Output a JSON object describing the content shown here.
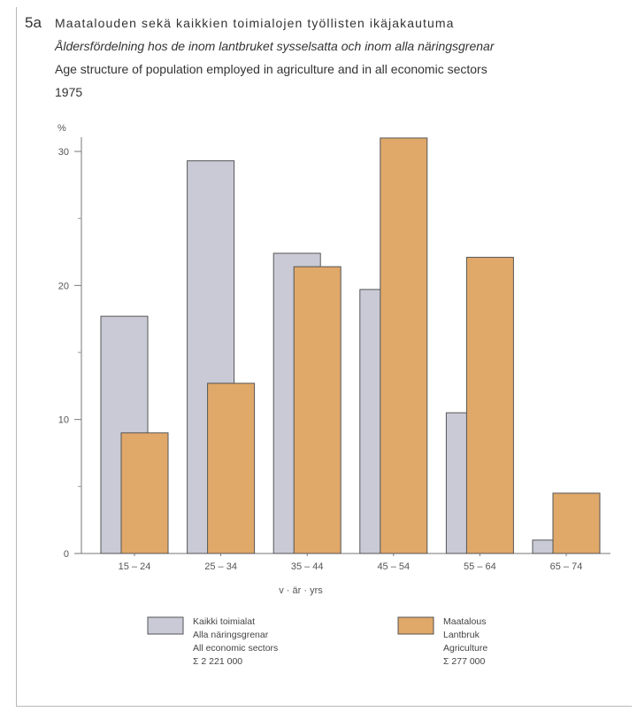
{
  "figure_number": "5a",
  "title_lines": [
    "Maatalouden sekä kaikkien toimialojen työllisten ikäjakautuma",
    "Åldersfördelning hos de inom lantbruket sysselsatta och inom alla näringsgrenar",
    "Age structure of population employed in agriculture and in all economic sectors",
    "1975"
  ],
  "colors": {
    "all_sectors": "#c9cad6",
    "agriculture": "#e0a869",
    "outline": "#555555"
  },
  "chart_data": {
    "type": "bar",
    "title": "Maatalouden sekä kaikkien toimialojen työllisten ikäjakautuma",
    "ylabel": "%",
    "xlabel": "v · är · yrs",
    "ylim": [
      0,
      30
    ],
    "yticks": [
      0,
      10,
      20,
      30
    ],
    "categories": [
      "15 – 24",
      "25 – 34",
      "35 – 44",
      "45 – 54",
      "55 – 64",
      "65 – 74"
    ],
    "series": [
      {
        "key": "all_sectors",
        "legend_lines": [
          "Kaikki toimialat",
          "Alla näringsgrenar",
          "All economic sectors",
          "Σ 2 221 000"
        ],
        "values": [
          17.7,
          29.3,
          22.4,
          19.7,
          10.5,
          1.0
        ]
      },
      {
        "key": "agriculture",
        "legend_lines": [
          "Maatalous",
          "Lantbruk",
          "Agriculture",
          "Σ 277 000"
        ],
        "values": [
          9.0,
          12.7,
          21.4,
          31.0,
          22.1,
          4.5
        ]
      }
    ]
  }
}
